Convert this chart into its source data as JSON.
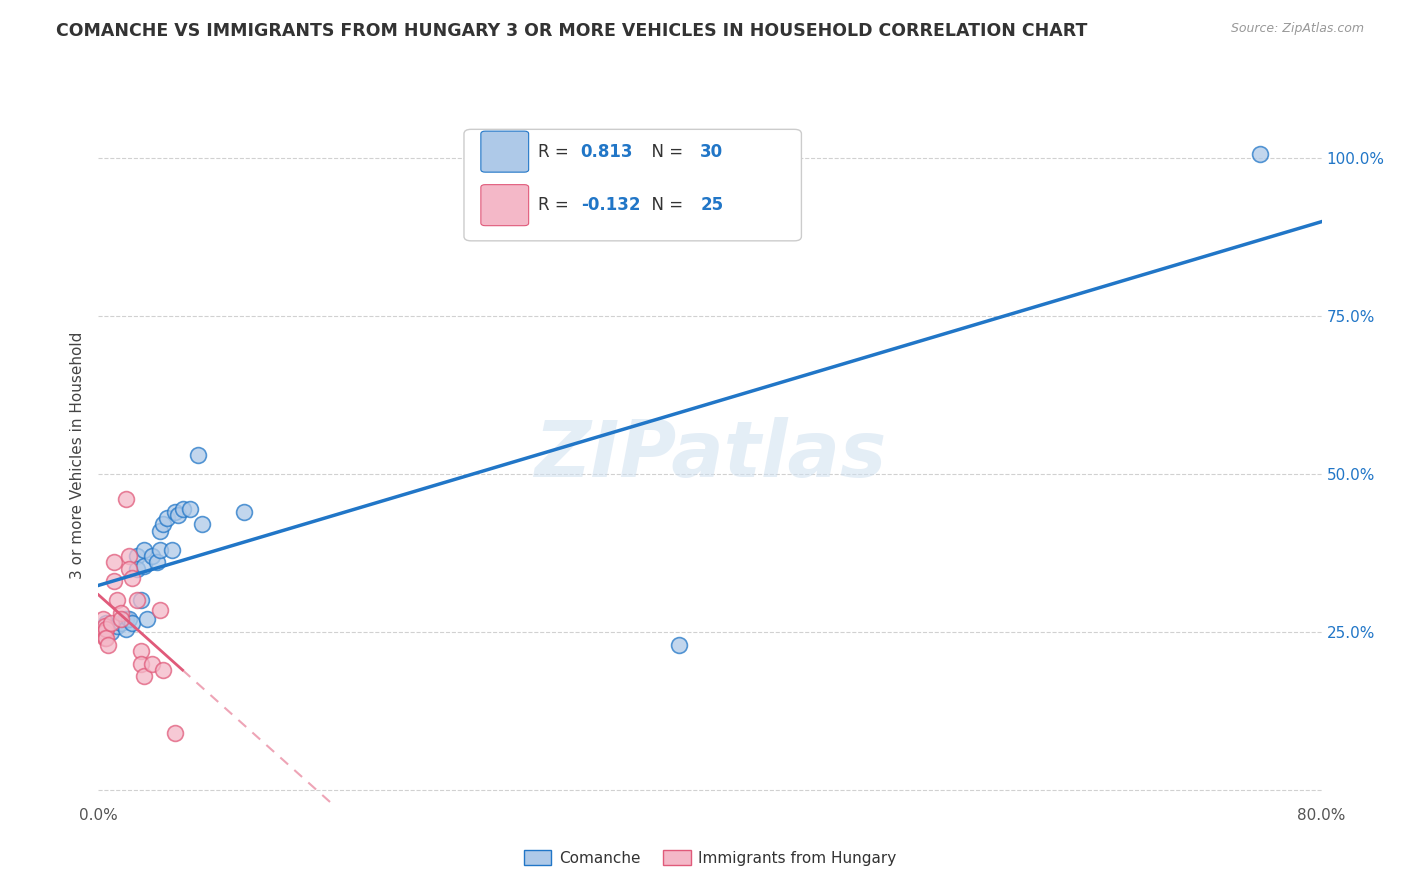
{
  "title": "COMANCHE VS IMMIGRANTS FROM HUNGARY 3 OR MORE VEHICLES IN HOUSEHOLD CORRELATION CHART",
  "source": "Source: ZipAtlas.com",
  "ylabel": "3 or more Vehicles in Household",
  "watermark": "ZIPatlas",
  "legend_label1": "Comanche",
  "legend_label2": "Immigrants from Hungary",
  "R1": 0.813,
  "N1": 30,
  "R2": -0.132,
  "N2": 25,
  "xlim": [
    0.0,
    0.8
  ],
  "ylim": [
    -0.02,
    1.08
  ],
  "color_blue": "#aec9e8",
  "color_pink": "#f4b8c8",
  "line_blue": "#2176c7",
  "line_pink": "#e05a7a",
  "scatter_blue_x": [
    0.005,
    0.008,
    0.012,
    0.015,
    0.018,
    0.018,
    0.02,
    0.022,
    0.025,
    0.025,
    0.028,
    0.03,
    0.03,
    0.032,
    0.035,
    0.038,
    0.04,
    0.04,
    0.042,
    0.045,
    0.048,
    0.05,
    0.052,
    0.055,
    0.06,
    0.065,
    0.068,
    0.095,
    0.38,
    0.76
  ],
  "scatter_blue_y": [
    0.265,
    0.25,
    0.26,
    0.265,
    0.27,
    0.255,
    0.27,
    0.265,
    0.37,
    0.35,
    0.3,
    0.38,
    0.355,
    0.27,
    0.37,
    0.36,
    0.41,
    0.38,
    0.42,
    0.43,
    0.38,
    0.44,
    0.435,
    0.445,
    0.445,
    0.53,
    0.42,
    0.44,
    0.23,
    1.005
  ],
  "scatter_pink_x": [
    0.003,
    0.004,
    0.004,
    0.004,
    0.005,
    0.005,
    0.006,
    0.008,
    0.01,
    0.01,
    0.012,
    0.015,
    0.015,
    0.018,
    0.02,
    0.02,
    0.022,
    0.025,
    0.028,
    0.028,
    0.03,
    0.035,
    0.04,
    0.042,
    0.05
  ],
  "scatter_pink_y": [
    0.27,
    0.26,
    0.25,
    0.24,
    0.255,
    0.24,
    0.23,
    0.265,
    0.36,
    0.33,
    0.3,
    0.28,
    0.27,
    0.46,
    0.37,
    0.35,
    0.335,
    0.3,
    0.22,
    0.2,
    0.18,
    0.2,
    0.285,
    0.19,
    0.09
  ]
}
